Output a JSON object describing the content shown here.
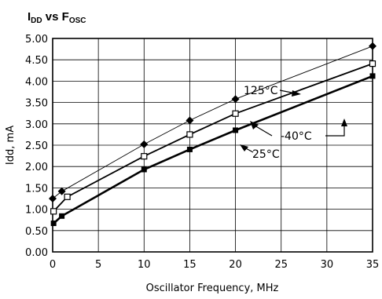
{
  "chart_data": {
    "type": "line",
    "title": {
      "main": "I",
      "sub_dd": "DD",
      "mid": " vs F",
      "sub_osc": "OSC"
    },
    "xlabel": "Oscillator Frequency, MHz",
    "ylabel": "Idd, mA",
    "xlim": [
      0,
      35
    ],
    "ylim": [
      0,
      5
    ],
    "xticks": [
      "0",
      "5",
      "10",
      "15",
      "20",
      "25",
      "30",
      "35"
    ],
    "yticks": [
      "0.00",
      "0.50",
      "1.00",
      "1.50",
      "2.00",
      "2.50",
      "3.00",
      "3.50",
      "4.00",
      "4.50",
      "5.00"
    ],
    "grid": true,
    "series": [
      {
        "name": "125°C",
        "marker": "diamond",
        "x": [
          0,
          1,
          10,
          15,
          20,
          35
        ],
        "y": [
          1.25,
          1.42,
          2.52,
          3.08,
          3.58,
          4.82
        ]
      },
      {
        "name": "-40°C",
        "marker": "open-square",
        "x": [
          0.1,
          1.6,
          10,
          15,
          20,
          35
        ],
        "y": [
          0.95,
          1.29,
          2.24,
          2.75,
          3.24,
          4.41
        ]
      },
      {
        "name": "25°C",
        "marker": "filled-square",
        "x": [
          0.1,
          1,
          10,
          15,
          20,
          35
        ],
        "y": [
          0.67,
          0.84,
          1.93,
          2.4,
          2.85,
          4.12
        ]
      }
    ]
  }
}
